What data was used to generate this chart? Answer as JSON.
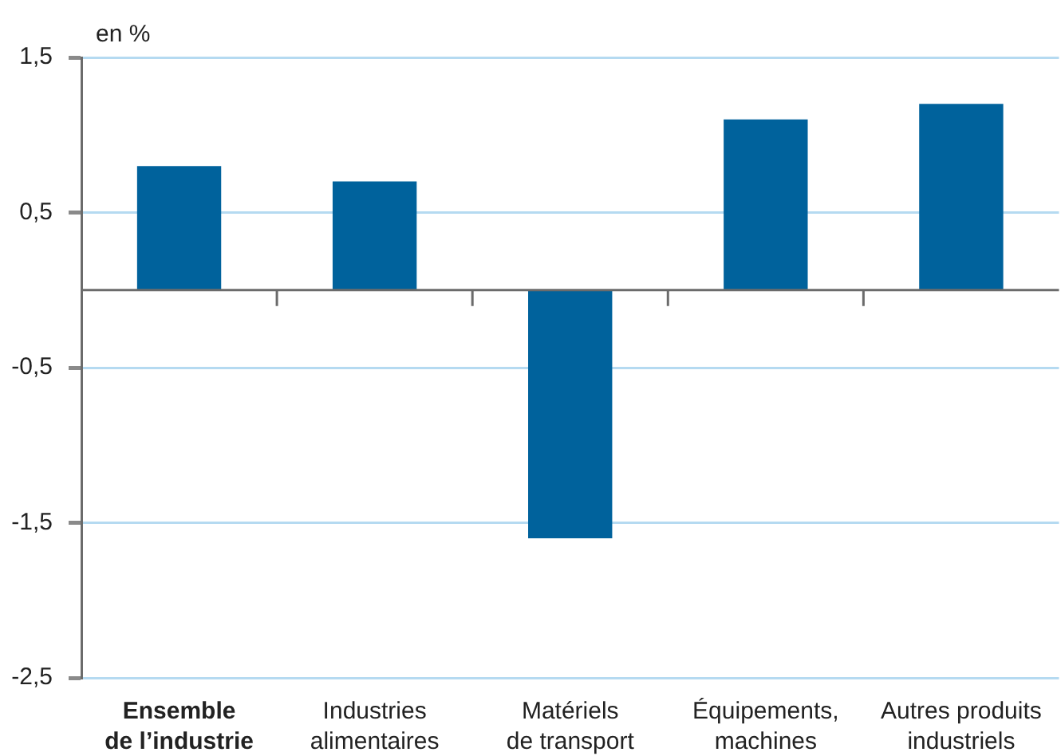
{
  "chart_data": {
    "type": "bar",
    "ylabel": "en %",
    "categories": [
      "Ensemble de l’industrie",
      "Industries alimentaires",
      "Matériels de transport",
      "Équipements, machines",
      "Autres produits industriels"
    ],
    "values": [
      0.8,
      0.7,
      -1.6,
      1.1,
      1.2
    ],
    "color": "#00629c",
    "ylim": [
      -2.5,
      1.5
    ],
    "yticks": [
      {
        "value": 1.5,
        "label": "1,5"
      },
      {
        "value": 0.5,
        "label": "0,5"
      },
      {
        "value": -0.5,
        "label": "-0,5"
      },
      {
        "value": -1.5,
        "label": "-1,5"
      },
      {
        "value": -2.5,
        "label": "-2,5"
      }
    ],
    "grid": "y"
  }
}
